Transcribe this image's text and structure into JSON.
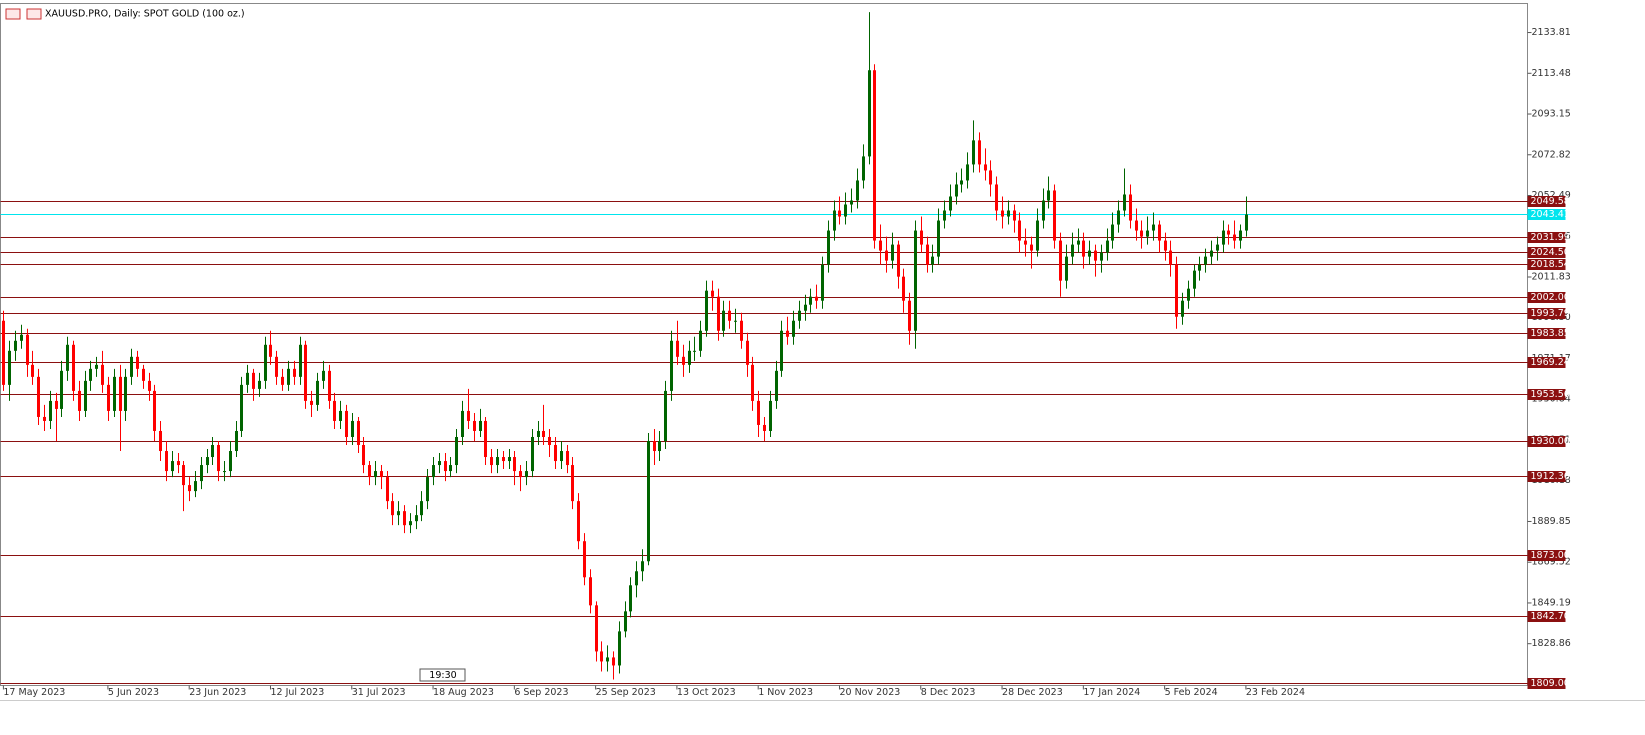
{
  "chart_data": {
    "type": "candlestick",
    "title": "XAUUSD.PRO, Daily:  SPOT GOLD (100 oz.)",
    "up_color": "#006400",
    "down_color": "#ff0000",
    "level_color": "#8b1010",
    "current_color": "#00e5ee",
    "current_price": 2043.41,
    "time_label": "19:30",
    "xlim": [
      -0.5,
      262.5
    ],
    "xticks": [
      {
        "value": 0,
        "label": "17 May 2023"
      },
      {
        "value": 18,
        "label": "5 Jun 2023"
      },
      {
        "value": 32,
        "label": "23 Jun 2023"
      },
      {
        "value": 46,
        "label": "12 Jul 2023"
      },
      {
        "value": 60,
        "label": "31 Jul 2023"
      },
      {
        "value": 74,
        "label": "18 Aug 2023"
      },
      {
        "value": 88,
        "label": "6 Sep 2023"
      },
      {
        "value": 102,
        "label": "25 Sep 2023"
      },
      {
        "value": 116,
        "label": "13 Oct 2023"
      },
      {
        "value": 130,
        "label": "1 Nov 2023"
      },
      {
        "value": 144,
        "label": "20 Nov 2023"
      },
      {
        "value": 158,
        "label": "8 Dec 2023"
      },
      {
        "value": 172,
        "label": "28 Dec 2023"
      },
      {
        "value": 186,
        "label": "17 Jan 2024"
      },
      {
        "value": 200,
        "label": "5 Feb 2024"
      },
      {
        "value": 214,
        "label": "23 Feb 2024"
      }
    ],
    "ylim": [
      1808,
      2148.3
    ],
    "yticks": [
      2133.81,
      2113.48,
      2093.15,
      2072.82,
      2052.49,
      2032.16,
      2011.83,
      {
        "value": 1991.5,
        "label": "1991.50"
      },
      1971.17,
      1950.84,
      1930.51,
      1910.18,
      1889.85,
      1869.52,
      1849.19,
      1828.86
    ],
    "levels": [
      2049.58,
      2031.99,
      {
        "value": 2024.5,
        "label": "2024.50"
      },
      2018.54,
      {
        "value": 2002,
        "label": "2002.00"
      },
      1993.79,
      1983.85,
      1969.24,
      1953.56,
      {
        "value": 1930,
        "label": "1930.00"
      },
      1912.36,
      {
        "value": 1873,
        "label": "1873.00"
      },
      {
        "value": 1842.7,
        "label": "1842.70"
      },
      {
        "value": 1809,
        "label": "1809.00"
      }
    ],
    "ohlc": [
      [
        1990,
        1995,
        1955,
        1958
      ],
      [
        1958,
        1980,
        1950,
        1975
      ],
      [
        1975,
        1985,
        1970,
        1980
      ],
      [
        1980,
        1988,
        1976,
        1983
      ],
      [
        1983,
        1986,
        1962,
        1968
      ],
      [
        1968,
        1975,
        1958,
        1962
      ],
      [
        1962,
        1966,
        1938,
        1942
      ],
      [
        1942,
        1948,
        1935,
        1940
      ],
      [
        1940,
        1955,
        1936,
        1950
      ],
      [
        1950,
        1954,
        1930,
        1946
      ],
      [
        1946,
        1970,
        1942,
        1965
      ],
      [
        1965,
        1982,
        1960,
        1978
      ],
      [
        1978,
        1980,
        1950,
        1955
      ],
      [
        1955,
        1960,
        1940,
        1945
      ],
      [
        1945,
        1965,
        1942,
        1960
      ],
      [
        1960,
        1970,
        1955,
        1966
      ],
      [
        1966,
        1972,
        1962,
        1968
      ],
      [
        1968,
        1975,
        1954,
        1958
      ],
      [
        1958,
        1962,
        1940,
        1945
      ],
      [
        1945,
        1966,
        1942,
        1962
      ],
      [
        1962,
        1968,
        1925,
        1945
      ],
      [
        1945,
        1966,
        1940,
        1962
      ],
      [
        1962,
        1976,
        1958,
        1972
      ],
      [
        1972,
        1975,
        1962,
        1966
      ],
      [
        1966,
        1968,
        1956,
        1960
      ],
      [
        1960,
        1964,
        1950,
        1955
      ],
      [
        1955,
        1958,
        1930,
        1935
      ],
      [
        1935,
        1940,
        1920,
        1925
      ],
      [
        1925,
        1930,
        1910,
        1915
      ],
      [
        1915,
        1925,
        1912,
        1920
      ],
      [
        1920,
        1924,
        1914,
        1918
      ],
      [
        1918,
        1920,
        1895,
        1908
      ],
      [
        1908,
        1912,
        1900,
        1905
      ],
      [
        1905,
        1915,
        1902,
        1910
      ],
      [
        1910,
        1922,
        1906,
        1918
      ],
      [
        1918,
        1926,
        1914,
        1922
      ],
      [
        1922,
        1932,
        1918,
        1928
      ],
      [
        1928,
        1930,
        1910,
        1915
      ],
      [
        1915,
        1920,
        1910,
        1915
      ],
      [
        1915,
        1930,
        1912,
        1925
      ],
      [
        1925,
        1940,
        1922,
        1935
      ],
      [
        1935,
        1962,
        1932,
        1958
      ],
      [
        1958,
        1968,
        1954,
        1964
      ],
      [
        1964,
        1966,
        1950,
        1956
      ],
      [
        1956,
        1964,
        1952,
        1960
      ],
      [
        1960,
        1982,
        1956,
        1978
      ],
      [
        1978,
        1985,
        1968,
        1972
      ],
      [
        1972,
        1975,
        1958,
        1962
      ],
      [
        1962,
        1966,
        1955,
        1958
      ],
      [
        1958,
        1970,
        1955,
        1966
      ],
      [
        1966,
        1970,
        1958,
        1962
      ],
      [
        1962,
        1982,
        1958,
        1978
      ],
      [
        1978,
        1980,
        1946,
        1950
      ],
      [
        1950,
        1955,
        1942,
        1948
      ],
      [
        1948,
        1964,
        1945,
        1960
      ],
      [
        1960,
        1970,
        1956,
        1965
      ],
      [
        1965,
        1968,
        1946,
        1950
      ],
      [
        1950,
        1954,
        1936,
        1940
      ],
      [
        1940,
        1950,
        1936,
        1945
      ],
      [
        1945,
        1948,
        1928,
        1932
      ],
      [
        1932,
        1944,
        1928,
        1940
      ],
      [
        1940,
        1942,
        1924,
        1928
      ],
      [
        1928,
        1932,
        1914,
        1918
      ],
      [
        1918,
        1920,
        1908,
        1912
      ],
      [
        1912,
        1920,
        1908,
        1915
      ],
      [
        1915,
        1918,
        1906,
        1912
      ],
      [
        1912,
        1915,
        1896,
        1900
      ],
      [
        1900,
        1904,
        1888,
        1893
      ],
      [
        1893,
        1900,
        1888,
        1895
      ],
      [
        1895,
        1898,
        1884,
        1888
      ],
      [
        1888,
        1894,
        1884,
        1890
      ],
      [
        1890,
        1898,
        1886,
        1893
      ],
      [
        1893,
        1905,
        1890,
        1900
      ],
      [
        1900,
        1916,
        1896,
        1912
      ],
      [
        1912,
        1922,
        1908,
        1918
      ],
      [
        1918,
        1924,
        1914,
        1920
      ],
      [
        1920,
        1924,
        1910,
        1915
      ],
      [
        1915,
        1922,
        1912,
        1918
      ],
      [
        1918,
        1936,
        1914,
        1932
      ],
      [
        1932,
        1950,
        1928,
        1945
      ],
      [
        1945,
        1956,
        1936,
        1940
      ],
      [
        1940,
        1944,
        1930,
        1935
      ],
      [
        1935,
        1946,
        1932,
        1940
      ],
      [
        1940,
        1942,
        1918,
        1922
      ],
      [
        1922,
        1926,
        1914,
        1918
      ],
      [
        1918,
        1926,
        1914,
        1922
      ],
      [
        1922,
        1925,
        1916,
        1920
      ],
      [
        1920,
        1926,
        1916,
        1922
      ],
      [
        1922,
        1925,
        1908,
        1915
      ],
      [
        1915,
        1918,
        1905,
        1912
      ],
      [
        1912,
        1920,
        1908,
        1915
      ],
      [
        1915,
        1936,
        1912,
        1932
      ],
      [
        1932,
        1940,
        1928,
        1935
      ],
      [
        1935,
        1948,
        1928,
        1932
      ],
      [
        1932,
        1936,
        1922,
        1928
      ],
      [
        1928,
        1932,
        1916,
        1920
      ],
      [
        1920,
        1930,
        1916,
        1925
      ],
      [
        1925,
        1928,
        1914,
        1918
      ],
      [
        1918,
        1922,
        1896,
        1900
      ],
      [
        1900,
        1904,
        1876,
        1880
      ],
      [
        1880,
        1884,
        1858,
        1862
      ],
      [
        1862,
        1866,
        1844,
        1848
      ],
      [
        1848,
        1850,
        1820,
        1825
      ],
      [
        1825,
        1830,
        1815,
        1820
      ],
      [
        1820,
        1828,
        1815,
        1822
      ],
      [
        1822,
        1825,
        1811,
        1818
      ],
      [
        1818,
        1840,
        1814,
        1835
      ],
      [
        1835,
        1850,
        1832,
        1845
      ],
      [
        1845,
        1862,
        1842,
        1858
      ],
      [
        1858,
        1870,
        1852,
        1865
      ],
      [
        1865,
        1876,
        1860,
        1870
      ],
      [
        1870,
        1934,
        1868,
        1930
      ],
      [
        1930,
        1936,
        1918,
        1925
      ],
      [
        1925,
        1935,
        1920,
        1930
      ],
      [
        1930,
        1960,
        1926,
        1955
      ],
      [
        1955,
        1985,
        1950,
        1980
      ],
      [
        1980,
        1990,
        1968,
        1972
      ],
      [
        1972,
        1978,
        1962,
        1968
      ],
      [
        1968,
        1980,
        1964,
        1975
      ],
      [
        1975,
        1982,
        1970,
        1975
      ],
      [
        1975,
        1990,
        1972,
        1985
      ],
      [
        1985,
        2010,
        1982,
        2005
      ],
      [
        2005,
        2010,
        1995,
        2002
      ],
      [
        2002,
        2006,
        1980,
        1985
      ],
      [
        1985,
        2000,
        1982,
        1995
      ],
      [
        1995,
        2000,
        1986,
        1990
      ],
      [
        1990,
        1996,
        1984,
        1990
      ],
      [
        1990,
        1994,
        1976,
        1980
      ],
      [
        1980,
        1984,
        1962,
        1968
      ],
      [
        1968,
        1972,
        1945,
        1950
      ],
      [
        1950,
        1955,
        1932,
        1938
      ],
      [
        1938,
        1942,
        1930,
        1935
      ],
      [
        1935,
        1955,
        1932,
        1950
      ],
      [
        1950,
        1970,
        1946,
        1965
      ],
      [
        1965,
        1990,
        1962,
        1985
      ],
      [
        1985,
        1992,
        1978,
        1982
      ],
      [
        1982,
        1995,
        1978,
        1990
      ],
      [
        1990,
        2000,
        1986,
        1995
      ],
      [
        1995,
        2003,
        1990,
        1998
      ],
      [
        1998,
        2006,
        1994,
        2002
      ],
      [
        2002,
        2008,
        1996,
        2000
      ],
      [
        2000,
        2022,
        1996,
        2018
      ],
      [
        2018,
        2040,
        2014,
        2035
      ],
      [
        2035,
        2050,
        2030,
        2045
      ],
      [
        2045,
        2052,
        2038,
        2042
      ],
      [
        2042,
        2054,
        2038,
        2048
      ],
      [
        2048,
        2056,
        2044,
        2050
      ],
      [
        2050,
        2066,
        2046,
        2060
      ],
      [
        2060,
        2078,
        2056,
        2072
      ],
      [
        2072,
        2144,
        2068,
        2115
      ],
      [
        2115,
        2118,
        2026,
        2030
      ],
      [
        2030,
        2038,
        2018,
        2025
      ],
      [
        2025,
        2032,
        2014,
        2020
      ],
      [
        2020,
        2034,
        2016,
        2028
      ],
      [
        2028,
        2030,
        2006,
        2012
      ],
      [
        2012,
        2016,
        1994,
        2000
      ],
      [
        2000,
        2004,
        1978,
        1985
      ],
      [
        1985,
        2040,
        1976,
        2035
      ],
      [
        2035,
        2042,
        2024,
        2028
      ],
      [
        2028,
        2032,
        2014,
        2018
      ],
      [
        2018,
        2028,
        2014,
        2022
      ],
      [
        2022,
        2046,
        2018,
        2040
      ],
      [
        2040,
        2050,
        2036,
        2045
      ],
      [
        2045,
        2058,
        2042,
        2052
      ],
      [
        2052,
        2064,
        2048,
        2058
      ],
      [
        2058,
        2066,
        2054,
        2060
      ],
      [
        2060,
        2074,
        2056,
        2068
      ],
      [
        2068,
        2090,
        2064,
        2080
      ],
      [
        2080,
        2084,
        2064,
        2068
      ],
      [
        2068,
        2076,
        2060,
        2065
      ],
      [
        2065,
        2070,
        2052,
        2058
      ],
      [
        2058,
        2062,
        2040,
        2045
      ],
      [
        2045,
        2052,
        2036,
        2042
      ],
      [
        2042,
        2050,
        2038,
        2045
      ],
      [
        2045,
        2048,
        2034,
        2040
      ],
      [
        2040,
        2044,
        2024,
        2030
      ],
      [
        2030,
        2036,
        2022,
        2028
      ],
      [
        2028,
        2032,
        2016,
        2025
      ],
      [
        2025,
        2046,
        2022,
        2040
      ],
      [
        2040,
        2056,
        2036,
        2050
      ],
      [
        2050,
        2062,
        2046,
        2055
      ],
      [
        2055,
        2058,
        2026,
        2030
      ],
      [
        2030,
        2034,
        2002,
        2010
      ],
      [
        2010,
        2028,
        2006,
        2022
      ],
      [
        2022,
        2034,
        2018,
        2028
      ],
      [
        2028,
        2036,
        2024,
        2030
      ],
      [
        2030,
        2034,
        2016,
        2022
      ],
      [
        2022,
        2030,
        2018,
        2025
      ],
      [
        2025,
        2028,
        2012,
        2020
      ],
      [
        2020,
        2028,
        2014,
        2024
      ],
      [
        2024,
        2036,
        2020,
        2030
      ],
      [
        2030,
        2044,
        2026,
        2038
      ],
      [
        2038,
        2050,
        2034,
        2045
      ],
      [
        2045,
        2066,
        2042,
        2053
      ],
      [
        2053,
        2058,
        2036,
        2040
      ],
      [
        2040,
        2046,
        2030,
        2035
      ],
      [
        2035,
        2040,
        2026,
        2032
      ],
      [
        2032,
        2042,
        2028,
        2035
      ],
      [
        2035,
        2044,
        2030,
        2038
      ],
      [
        2038,
        2040,
        2024,
        2030
      ],
      [
        2030,
        2034,
        2020,
        2025
      ],
      [
        2025,
        2030,
        2012,
        2018
      ],
      [
        2018,
        2022,
        1986,
        1992
      ],
      [
        1992,
        2004,
        1988,
        2000
      ],
      [
        2000,
        2010,
        1996,
        2006
      ],
      [
        2006,
        2018,
        2002,
        2015
      ],
      [
        2015,
        2022,
        2010,
        2018
      ],
      [
        2018,
        2026,
        2014,
        2022
      ],
      [
        2022,
        2030,
        2018,
        2025
      ],
      [
        2025,
        2032,
        2020,
        2028
      ],
      [
        2028,
        2040,
        2024,
        2035
      ],
      [
        2035,
        2038,
        2028,
        2033
      ],
      [
        2033,
        2040,
        2026,
        2030
      ],
      [
        2030,
        2038,
        2026,
        2035
      ],
      [
        2035,
        2052,
        2032,
        2043
      ]
    ]
  }
}
